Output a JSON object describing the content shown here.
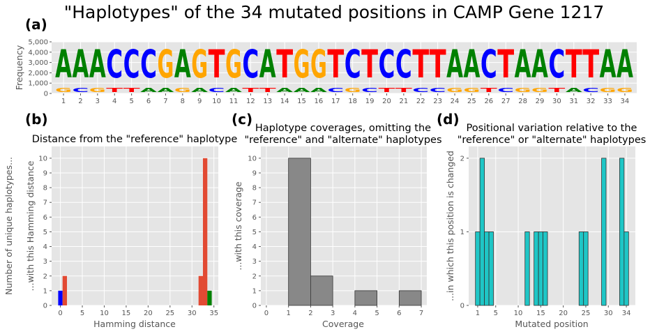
{
  "figure": {
    "title": "\"Haplotypes\" of the 34 mutated positions in CAMP Gene 1217",
    "colors": {
      "A": "#008000",
      "C": "#0000ff",
      "G": "#ffa500",
      "T": "#ff0000",
      "panel_bg": "#e5e5e5",
      "grid": "#ffffff",
      "hist_gray": "#888888",
      "hist_cyan": "#1fc6c6"
    }
  },
  "chart_data": [
    {
      "panel_label": "(a)",
      "type": "sequence_logo",
      "ylabel": "Frequency",
      "ylim": [
        0,
        5000
      ],
      "yticks": [
        0,
        1000,
        2000,
        3000,
        4000,
        5000
      ],
      "ytick_labels": [
        "0",
        "1,000",
        "2,000",
        "3,000",
        "4,000",
        "5,000"
      ],
      "positions": [
        "1",
        "2",
        "3",
        "4",
        "5",
        "6",
        "7",
        "8",
        "9",
        "10",
        "11",
        "12",
        "13",
        "14",
        "15",
        "16",
        "17",
        "18",
        "19",
        "20",
        "21",
        "22",
        "23",
        "24",
        "25",
        "26",
        "27",
        "28",
        "29",
        "30",
        "31",
        "32",
        "33",
        "34"
      ],
      "major_base": [
        "A",
        "A",
        "A",
        "C",
        "C",
        "C",
        "G",
        "A",
        "G",
        "T",
        "G",
        "C",
        "A",
        "T",
        "G",
        "G",
        "T",
        "C",
        "T",
        "C",
        "C",
        "T",
        "T",
        "A",
        "A",
        "C",
        "T",
        "A",
        "A",
        "C",
        "T",
        "T",
        "A",
        "A"
      ],
      "major_freq": 4350,
      "minor_base": [
        "G",
        "C",
        "G",
        "T",
        "T",
        "A",
        "A",
        "G",
        "A",
        "C",
        "A",
        "T",
        "T",
        "A",
        "A",
        "A",
        "C",
        "G",
        "C",
        "T",
        "T",
        "C",
        "C",
        "G",
        "G",
        "T",
        "C",
        "G",
        "G",
        "T",
        "A",
        "C",
        "G",
        "G"
      ],
      "minor_freq": 650
    },
    {
      "panel_label": "(b)",
      "type": "bar",
      "title": "Distance from the \"reference\" haplotype",
      "xlabel": "Hamming distance",
      "ylabel": "Number of unique haplotypes...\n...with this Hamming distance",
      "xlim": [
        -2,
        36
      ],
      "ylim": [
        0,
        10.8
      ],
      "xticks": [
        0,
        5,
        10,
        15,
        20,
        25,
        30,
        35
      ],
      "yticks": [
        0,
        1,
        2,
        3,
        4,
        5,
        6,
        7,
        8,
        9,
        10
      ],
      "bars": [
        {
          "x": 0,
          "value": 1,
          "color": "#0000ff"
        },
        {
          "x": 1,
          "value": 2,
          "color": "#e24a33"
        },
        {
          "x": 32,
          "value": 2,
          "color": "#e24a33"
        },
        {
          "x": 33,
          "value": 10,
          "color": "#e24a33"
        },
        {
          "x": 34,
          "value": 1,
          "color": "#008000"
        }
      ]
    },
    {
      "panel_label": "(c)",
      "type": "histogram",
      "title": "Haplotype coverages, omitting the\n\"reference\" and \"alternate\" haplotypes",
      "xlabel": "Coverage",
      "ylabel": "...with this coverage",
      "xlim": [
        -0.25,
        7.25
      ],
      "ylim": [
        0,
        10.8
      ],
      "xticks": [
        0,
        1,
        2,
        3,
        4,
        5,
        6,
        7
      ],
      "yticks": [
        0,
        1,
        2,
        3,
        4,
        5,
        6,
        7,
        8,
        9,
        10
      ],
      "bins": [
        {
          "x0": 1,
          "x1": 2,
          "value": 10
        },
        {
          "x0": 2,
          "x1": 3,
          "value": 2
        },
        {
          "x0": 4,
          "x1": 5,
          "value": 1
        },
        {
          "x0": 6,
          "x1": 7,
          "value": 1
        }
      ]
    },
    {
      "panel_label": "(d)",
      "type": "bar",
      "title": "Positional variation relative to the\n\"reference\" or \"alternate\" haplotypes",
      "xlabel": "Mutated position",
      "ylabel": "...in which this position is changed",
      "xlim": [
        -1,
        36
      ],
      "ylim": [
        0,
        2.16
      ],
      "xticks": [
        1,
        5,
        10,
        15,
        20,
        25,
        30,
        34
      ],
      "yticks": [
        0,
        1,
        2
      ],
      "values": [
        1,
        2,
        1,
        1,
        0,
        0,
        0,
        0,
        0,
        0,
        0,
        1,
        0,
        1,
        1,
        1,
        0,
        0,
        0,
        0,
        0,
        0,
        0,
        1,
        1,
        0,
        0,
        0,
        2,
        0,
        0,
        0,
        2,
        1
      ]
    }
  ]
}
